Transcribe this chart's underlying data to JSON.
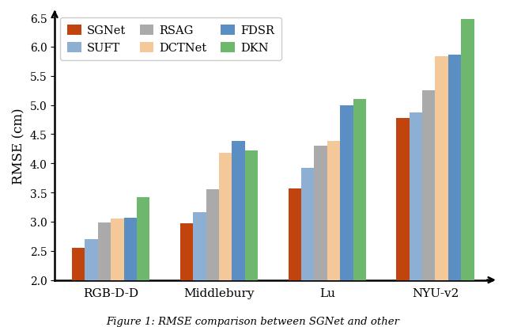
{
  "categories": [
    "RGB-D-D",
    "Middlebury",
    "Lu",
    "NYU-v2"
  ],
  "methods": [
    "SGNet",
    "SUFT",
    "RSAG",
    "DCTNet",
    "FDSR",
    "DKN"
  ],
  "colors": [
    "#C1440E",
    "#8DAfd4",
    "#AAAAAA",
    "#F5C89A",
    "#5B8FC4",
    "#6DB86D"
  ],
  "values": {
    "SGNet": [
      2.55,
      2.97,
      3.57,
      4.78
    ],
    "SUFT": [
      2.7,
      3.16,
      3.92,
      4.87
    ],
    "RSAG": [
      2.98,
      3.55,
      4.3,
      5.25
    ],
    "DCTNet": [
      3.06,
      4.18,
      4.38,
      5.84
    ],
    "FDSR": [
      3.07,
      4.38,
      5.0,
      5.87
    ],
    "DKN": [
      3.42,
      4.22,
      5.1,
      6.48
    ]
  },
  "ylabel": "RMSE (cm)",
  "ylim": [
    2.0,
    6.6
  ],
  "yticks": [
    2.0,
    2.5,
    3.0,
    3.5,
    4.0,
    4.5,
    5.0,
    5.5,
    6.0,
    6.5
  ],
  "bar_width": 0.12,
  "background_color": "#FFFFFF",
  "caption": "Figure 1: RMSE comparison between SGNet and other"
}
